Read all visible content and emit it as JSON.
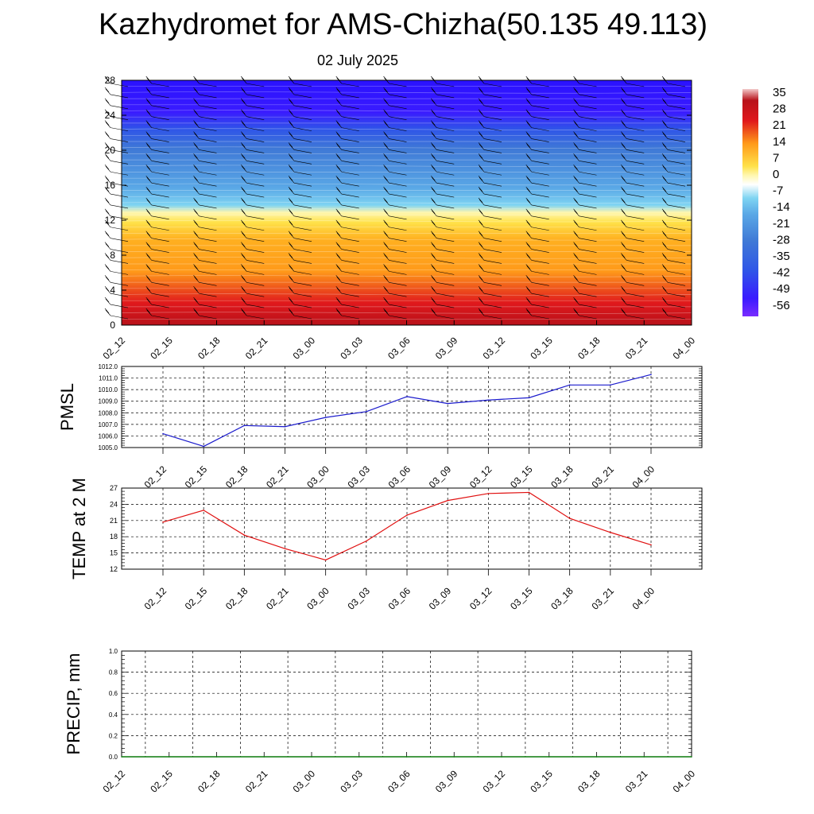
{
  "page": {
    "title": "Kazhydromet for AMS-Chizha(50.135 49.113)",
    "subtitle": "02 July 2025"
  },
  "chart_data": [
    {
      "type": "heatmap",
      "title": "",
      "x_tick_labels": [
        "02_12",
        "02_15",
        "02_18",
        "02_21",
        "03_00",
        "03_03",
        "03_06",
        "03_09",
        "03_12",
        "03_15",
        "03_18",
        "03_21",
        "04_00"
      ],
      "y_tick_labels": [
        "0",
        "4",
        "8",
        "12",
        "16",
        "20",
        "24",
        "28"
      ],
      "ylim": [
        0,
        28
      ],
      "colorbar_labels": [
        "35",
        "28",
        "21",
        "14",
        "7",
        "0",
        "-7",
        "-14",
        "-21",
        "-28",
        "-35",
        "-42",
        "-49",
        "-56"
      ],
      "colorbar_range": [
        -56,
        35
      ],
      "colors": {
        "low": "#3a1bff",
        "mid_blue": "#3f79d6",
        "light_blue": "#7fd4f2",
        "yellow": "#ffe24a",
        "orange": "#ff9a1a",
        "red": "#e0181c",
        "dark_red": "#b8121a"
      },
      "bands": [
        {
          "height_from": 0,
          "height_to": 3,
          "value": 30
        },
        {
          "height_from": 3,
          "height_to": 7,
          "value": 20
        },
        {
          "height_from": 7,
          "height_to": 10,
          "value": 8
        },
        {
          "height_from": 10,
          "height_to": 13,
          "value": -3
        },
        {
          "height_from": 13,
          "height_to": 15,
          "value": -15
        },
        {
          "height_from": 15,
          "height_to": 22,
          "value": -38
        },
        {
          "height_from": 22,
          "height_to": 28,
          "value": -56
        }
      ]
    },
    {
      "type": "line",
      "ylabel": "PMSL",
      "x": [
        "02_12",
        "02_15",
        "02_18",
        "02_21",
        "03_00",
        "03_03",
        "03_06",
        "03_09",
        "03_12",
        "03_15",
        "03_18",
        "03_21",
        "04_00"
      ],
      "values": [
        1006.2,
        1005.1,
        1006.9,
        1006.8,
        1007.6,
        1008.1,
        1009.4,
        1008.8,
        1009.1,
        1009.3,
        1010.4,
        1010.4,
        1011.3
      ],
      "ylim": [
        1005.0,
        1012.0
      ],
      "y_tick_labels": [
        "1005.0",
        "1006.0",
        "1007.0",
        "1008.0",
        "1009.0",
        "1010.0",
        "1011.0",
        "1012.0"
      ],
      "grid": true,
      "color": "#1a1acc"
    },
    {
      "type": "line",
      "ylabel": "TEMP at 2 M",
      "x": [
        "02_12",
        "02_15",
        "02_18",
        "02_21",
        "03_00",
        "03_03",
        "03_06",
        "03_09",
        "03_12",
        "03_15",
        "03_18",
        "03_21",
        "04_00"
      ],
      "values": [
        20.7,
        22.9,
        18.3,
        15.8,
        13.7,
        17.2,
        22.0,
        24.7,
        26.0,
        26.2,
        21.4,
        18.8,
        16.5
      ],
      "ylim": [
        12,
        27
      ],
      "y_tick_labels": [
        "12",
        "15",
        "18",
        "21",
        "24",
        "27"
      ],
      "grid": true,
      "color": "#e01010"
    },
    {
      "type": "line",
      "ylabel": "PRECIP, mm",
      "x": [
        "02_12",
        "02_15",
        "02_18",
        "02_21",
        "03_00",
        "03_03",
        "03_06",
        "03_09",
        "03_12",
        "03_15",
        "03_18",
        "03_21",
        "04_00"
      ],
      "values": [
        0,
        0,
        0,
        0,
        0,
        0,
        0,
        0,
        0,
        0,
        0,
        0,
        0
      ],
      "ylim": [
        0.0,
        1.0
      ],
      "y_tick_labels": [
        "0.0",
        "0.2",
        "0.4",
        "0.6",
        "0.8",
        "1.0"
      ],
      "grid": true,
      "color": "#0a7a0a"
    }
  ]
}
